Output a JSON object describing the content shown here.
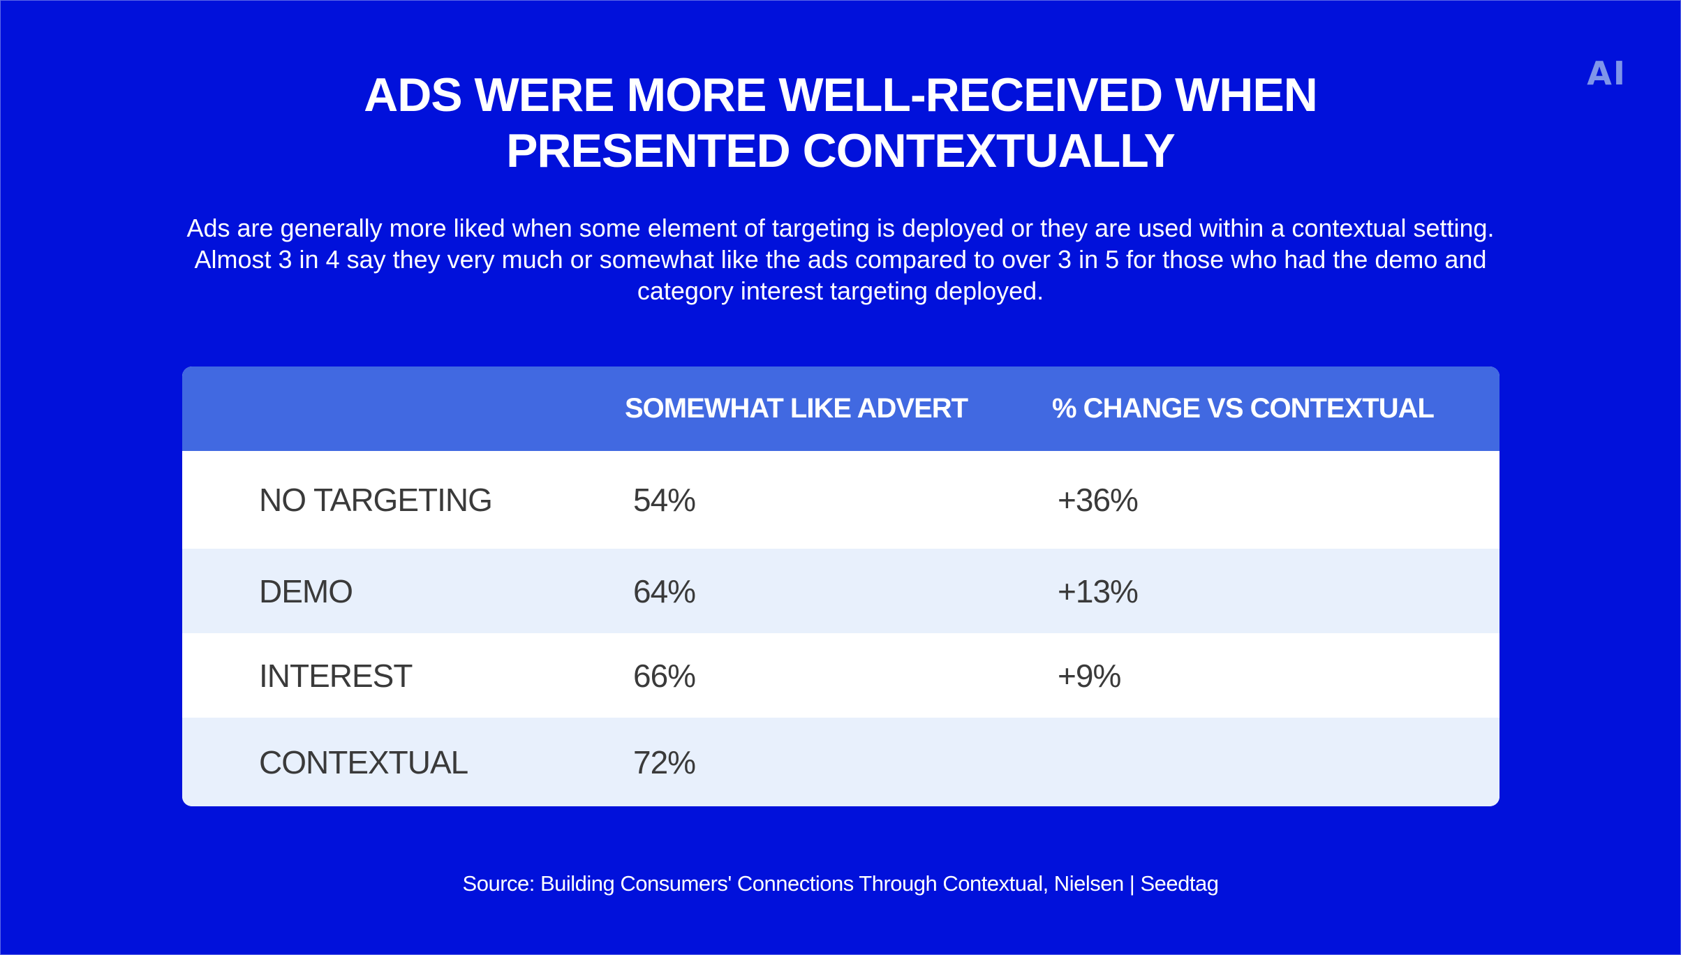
{
  "logo": "AI",
  "title": "ADS WERE MORE WELL-RECEIVED WHEN PRESENTED CONTEXTUALLY",
  "subtitle": "Ads are generally more liked when some element of targeting is deployed or they are used within a contextual setting. Almost 3 in 4 say they very much or somewhat like the ads compared to over 3 in 5 for those who had the demo and category interest targeting deployed.",
  "source": "Source: Building Consumers' Connections Through Contextual, Nielsen | Seedtag",
  "colors": {
    "background": "#0111db",
    "header": "#4169e1",
    "row_alt": "#e8f0fc",
    "logo": "#7f95ea"
  },
  "chart_data": {
    "type": "table",
    "title": "ADS WERE MORE WELL-RECEIVED WHEN PRESENTED CONTEXTUALLY",
    "columns": [
      "",
      "SOMEWHAT LIKE ADVERT",
      "% CHANGE VS CONTEXTUAL"
    ],
    "rows": [
      {
        "label": "NO TARGETING",
        "like": "54%",
        "change": "+36%"
      },
      {
        "label": "DEMO",
        "like": "64%",
        "change": "+13%"
      },
      {
        "label": "INTEREST",
        "like": "66%",
        "change": "+9%"
      },
      {
        "label": "CONTEXTUAL",
        "like": "72%",
        "change": ""
      }
    ]
  }
}
